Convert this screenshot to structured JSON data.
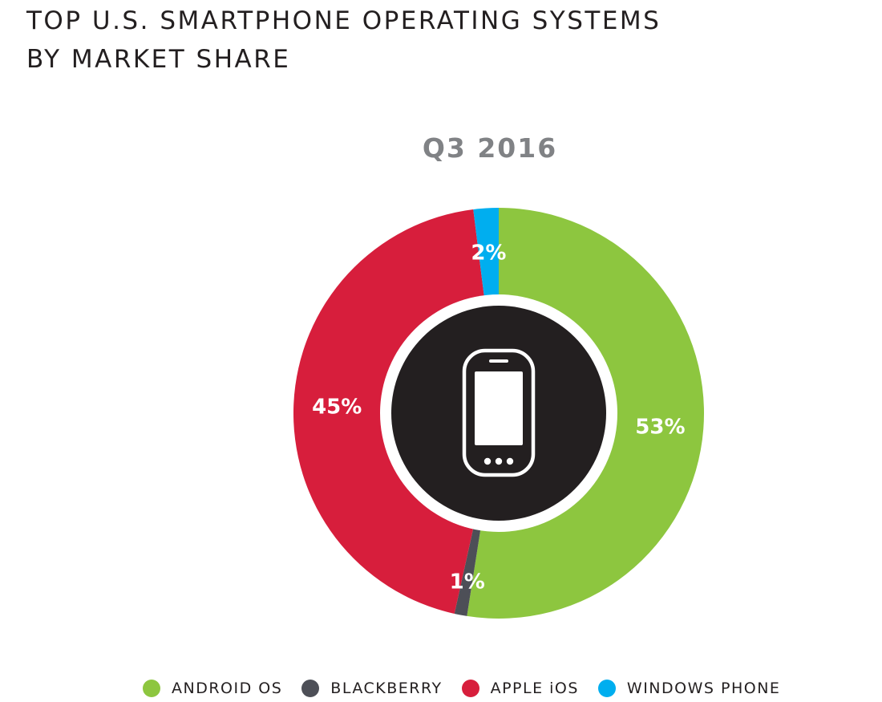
{
  "title": {
    "line1": "TOP U.S. SMARTPHONE OPERATING SYSTEMS",
    "line2": "BY MARKET SHARE"
  },
  "chart_data": {
    "type": "pie",
    "variant": "donut",
    "title": "Q3 2016",
    "categories": [
      "ANDROID OS",
      "BLACKBERRY",
      "APPLE iOS",
      "WINDOWS PHONE"
    ],
    "values": [
      53,
      1,
      45,
      2
    ],
    "data_labels": [
      "53%",
      "1%",
      "45%",
      "2%"
    ],
    "colors": [
      "#8dc63f",
      "#4d4f57",
      "#d71e3c",
      "#00aeef"
    ],
    "start_angle_deg": 0,
    "direction": "clockwise",
    "center_icon": "smartphone-icon",
    "center_color": "#231f20",
    "legend_position": "bottom"
  },
  "legend": {
    "items": [
      {
        "label": "ANDROID OS",
        "color": "#8dc63f"
      },
      {
        "label": "BLACKBERRY",
        "color": "#4d4f57"
      },
      {
        "label": "APPLE iOS",
        "color": "#d71e3c"
      },
      {
        "label": "WINDOWS PHONE",
        "color": "#00aeef"
      }
    ]
  }
}
